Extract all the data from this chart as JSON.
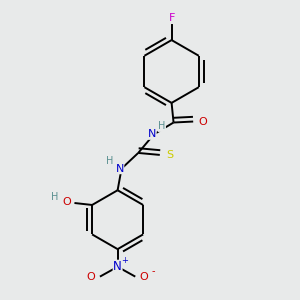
{
  "bg_color": "#e8eaea",
  "atom_colors": {
    "C": "#000000",
    "H": "#5a9090",
    "N": "#0000cc",
    "O": "#cc0000",
    "F": "#cc00cc",
    "S": "#cccc00"
  },
  "bond_color": "#000000",
  "bond_width": 1.4,
  "figsize": [
    3.0,
    3.0
  ],
  "dpi": 100
}
